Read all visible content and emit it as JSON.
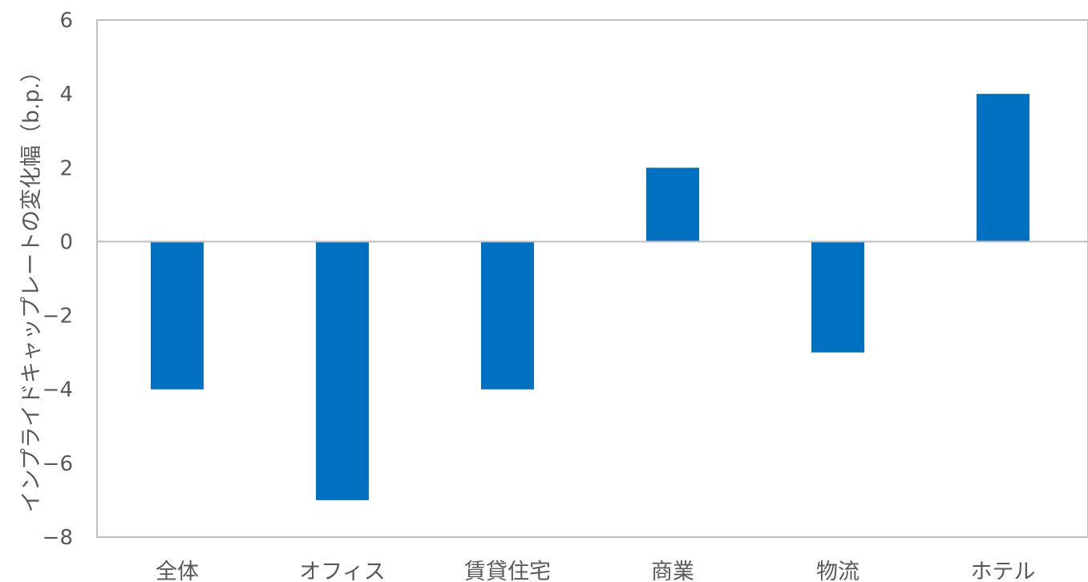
{
  "chart_data": {
    "type": "bar",
    "title": "",
    "xlabel": "",
    "ylabel": "インプライドキャップレートの変化幅（b.p.）",
    "categories": [
      "全体",
      "オフィス",
      "賃貸住宅",
      "商業",
      "物流",
      "ホテル"
    ],
    "series": [
      {
        "values": [
          -4,
          -7,
          -4,
          2,
          -3,
          4
        ]
      }
    ],
    "ylim": [
      -8,
      6
    ],
    "yticks": [
      6,
      4,
      2,
      0,
      -2,
      -4,
      -6,
      -8
    ],
    "ytick_labels": [
      "6",
      "4",
      "2",
      "0",
      "−2",
      "−4",
      "−6",
      "−8"
    ],
    "grid": false,
    "legend": "none",
    "colors": {
      "bar": "#0070C0",
      "axis": "#BFBFBF",
      "text": "#595959"
    }
  }
}
